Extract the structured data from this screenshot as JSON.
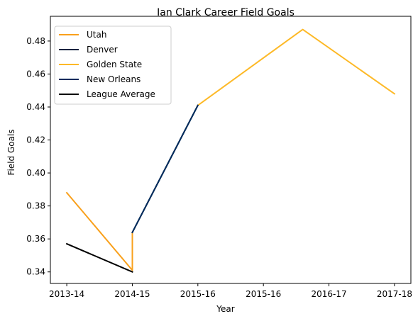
{
  "chart_data": {
    "type": "line",
    "title": "Ian Clark  Career Field Goals",
    "xlabel": "Year",
    "ylabel": "Field Goals",
    "x_ticks": [
      "2013-14",
      "2014-15",
      "2015-16",
      "2015-16",
      "2016-17",
      "2017-18"
    ],
    "x_range": [
      -0.25,
      5.25
    ],
    "ylim": [
      0.333,
      0.495
    ],
    "y_ticks": [
      0.34,
      0.36,
      0.38,
      0.4,
      0.42,
      0.44,
      0.46,
      0.48
    ],
    "grid": false,
    "legend_position": "top-left",
    "series": [
      {
        "name": "Utah",
        "color": "#F9A01B",
        "points": [
          [
            0,
            0.388
          ],
          [
            1,
            0.341
          ],
          [
            1,
            0.364
          ]
        ]
      },
      {
        "name": "Denver",
        "color": "#0E2240",
        "points": [
          [
            1,
            0.364
          ],
          [
            2,
            0.441
          ]
        ]
      },
      {
        "name": "Golden State",
        "color": "#FDB927",
        "points": [
          [
            2,
            0.441
          ],
          [
            3.6,
            0.487
          ],
          [
            5,
            0.448
          ]
        ]
      },
      {
        "name": "New Orleans",
        "color": "#002B5C",
        "points": [
          [
            1,
            0.364
          ],
          [
            2,
            0.441
          ]
        ]
      },
      {
        "name": "League Average",
        "color": "#000000",
        "points": [
          [
            0,
            0.357
          ],
          [
            1,
            0.34
          ]
        ]
      }
    ]
  }
}
